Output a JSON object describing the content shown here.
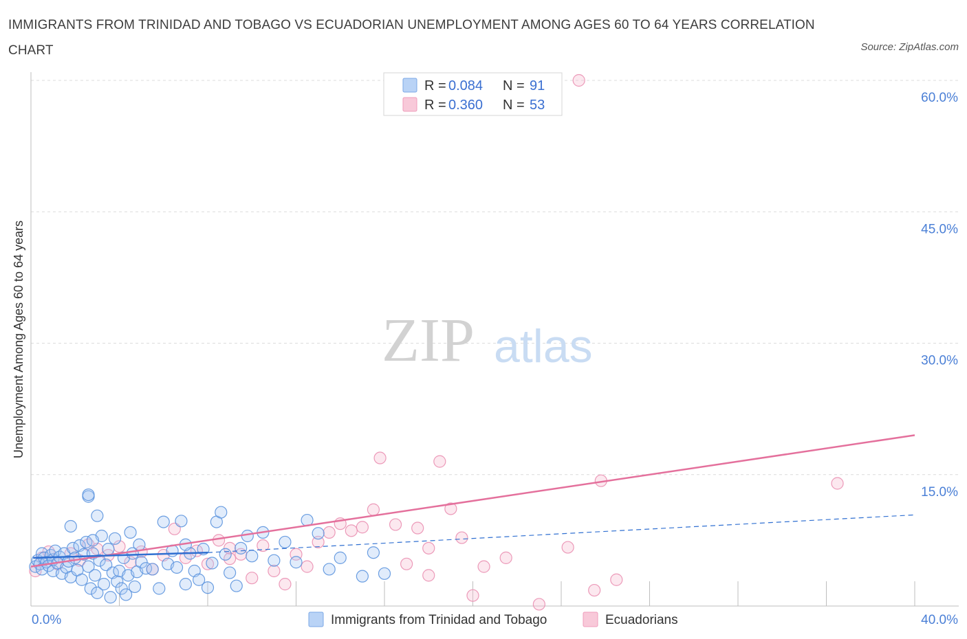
{
  "title": "IMMIGRANTS FROM TRINIDAD AND TOBAGO VS ECUADORIAN UNEMPLOYMENT AMONG AGES 60 TO 64 YEARS CORRELATION CHART",
  "source": "Source: ZipAtlas.com",
  "watermark": {
    "zip": "ZIP",
    "atlas": "atlas"
  },
  "legend": {
    "r_label": "R =",
    "n_label": "N =",
    "rows": [
      {
        "r": "0.084",
        "n": "91",
        "color": "#a9c8f3"
      },
      {
        "r": "0.360",
        "n": "53",
        "color": "#f6bdd0"
      }
    ]
  },
  "bottom_legend": [
    {
      "label": "Immigrants from Trinidad and Tobago",
      "color": "#a9c8f3"
    },
    {
      "label": "Ecuadorians",
      "color": "#f6bdd0"
    }
  ],
  "chart_data": {
    "type": "scatter",
    "ylabel": "Unemployment Among Ages 60 to 64 years",
    "xlim": [
      0,
      40
    ],
    "ylim": [
      0,
      60
    ],
    "x_tick_labels": [
      "0.0%",
      "40.0%"
    ],
    "y_ticks": [
      15,
      30,
      45,
      60
    ],
    "y_tick_labels": [
      "15.0%",
      "30.0%",
      "45.0%",
      "60.0%"
    ],
    "grid": true,
    "colors": {
      "blue": "#5b93de",
      "pink": "#ea8fb1",
      "blue_line": "#2f6fd1",
      "pink_line": "#e4709c"
    },
    "series": [
      {
        "name": "Immigrants from Trinidad and Tobago",
        "trend": {
          "solid": [
            [
              0.1,
              5.5
            ],
            [
              8.0,
              6.1
            ]
          ],
          "dashed": [
            [
              8.0,
              6.1
            ],
            [
              40.0,
              10.4
            ]
          ]
        },
        "points": [
          [
            0.2,
            4.5
          ],
          [
            0.3,
            5.2
          ],
          [
            0.4,
            4.8
          ],
          [
            0.5,
            6.0
          ],
          [
            0.5,
            4.2
          ],
          [
            0.6,
            5.5
          ],
          [
            0.7,
            5.0
          ],
          [
            0.8,
            4.6
          ],
          [
            0.9,
            5.8
          ],
          [
            1.0,
            4.0
          ],
          [
            1.0,
            5.3
          ],
          [
            1.1,
            6.3
          ],
          [
            1.2,
            4.9
          ],
          [
            1.3,
            5.6
          ],
          [
            1.4,
            3.7
          ],
          [
            1.5,
            6.0
          ],
          [
            1.6,
            4.4
          ],
          [
            1.7,
            5.1
          ],
          [
            1.8,
            3.3
          ],
          [
            1.9,
            6.6
          ],
          [
            2.0,
            5.5
          ],
          [
            2.1,
            4.1
          ],
          [
            2.2,
            6.9
          ],
          [
            2.3,
            3.0
          ],
          [
            2.4,
            5.9
          ],
          [
            2.5,
            7.3
          ],
          [
            2.6,
            4.5
          ],
          [
            2.7,
            2.0
          ],
          [
            2.8,
            6.0
          ],
          [
            2.9,
            3.5
          ],
          [
            3.0,
            1.5
          ],
          [
            3.1,
            5.2
          ],
          [
            3.2,
            8.0
          ],
          [
            3.3,
            2.5
          ],
          [
            3.4,
            4.7
          ],
          [
            3.5,
            6.5
          ],
          [
            3.6,
            1.0
          ],
          [
            3.7,
            3.8
          ],
          [
            3.8,
            7.7
          ],
          [
            3.9,
            2.8
          ],
          [
            4.0,
            4.0
          ],
          [
            4.1,
            2.0
          ],
          [
            4.2,
            5.5
          ],
          [
            4.3,
            1.3
          ],
          [
            4.4,
            3.5
          ],
          [
            4.5,
            8.4
          ],
          [
            4.6,
            6.0
          ],
          [
            4.7,
            2.2
          ],
          [
            4.8,
            3.9
          ],
          [
            2.6,
            12.5
          ],
          [
            2.6,
            12.7
          ],
          [
            3.0,
            10.3
          ],
          [
            1.8,
            9.1
          ],
          [
            2.8,
            7.5
          ],
          [
            4.9,
            7.0
          ],
          [
            5.0,
            5.0
          ],
          [
            5.2,
            4.3
          ],
          [
            5.5,
            4.2
          ],
          [
            5.8,
            2.0
          ],
          [
            6.0,
            9.6
          ],
          [
            6.2,
            4.8
          ],
          [
            6.4,
            6.3
          ],
          [
            6.6,
            4.4
          ],
          [
            6.8,
            9.7
          ],
          [
            7.0,
            2.5
          ],
          [
            7.2,
            6.0
          ],
          [
            7.4,
            4.0
          ],
          [
            7.6,
            3.0
          ],
          [
            7.8,
            6.5
          ],
          [
            8.0,
            2.1
          ],
          [
            8.2,
            4.9
          ],
          [
            8.4,
            9.6
          ],
          [
            8.6,
            10.7
          ],
          [
            8.8,
            5.9
          ],
          [
            9.0,
            3.8
          ],
          [
            9.3,
            2.3
          ],
          [
            9.5,
            6.6
          ],
          [
            9.8,
            8.0
          ],
          [
            10.0,
            5.7
          ],
          [
            10.5,
            8.4
          ],
          [
            11.0,
            5.2
          ],
          [
            11.5,
            7.3
          ],
          [
            12.0,
            5.0
          ],
          [
            12.5,
            9.8
          ],
          [
            13.0,
            8.3
          ],
          [
            13.5,
            4.2
          ],
          [
            14.0,
            5.5
          ],
          [
            15.0,
            3.4
          ],
          [
            15.5,
            6.1
          ],
          [
            16.0,
            3.7
          ],
          [
            7.0,
            7.0
          ]
        ]
      },
      {
        "name": "Ecuadorians",
        "trend": {
          "solid": [
            [
              0.0,
              4.5
            ],
            [
              40.0,
              19.5
            ]
          ]
        },
        "points": [
          [
            0.2,
            4.0
          ],
          [
            0.5,
            5.5
          ],
          [
            0.8,
            6.2
          ],
          [
            1.2,
            4.8
          ],
          [
            1.8,
            6.0
          ],
          [
            2.2,
            5.2
          ],
          [
            2.6,
            7.0
          ],
          [
            3.0,
            6.5
          ],
          [
            3.5,
            5.8
          ],
          [
            4.0,
            6.8
          ],
          [
            4.5,
            5.0
          ],
          [
            5.0,
            6.2
          ],
          [
            5.5,
            4.2
          ],
          [
            6.0,
            5.8
          ],
          [
            6.5,
            8.8
          ],
          [
            7.0,
            5.5
          ],
          [
            7.5,
            6.3
          ],
          [
            8.0,
            4.8
          ],
          [
            8.5,
            7.5
          ],
          [
            9.0,
            6.6
          ],
          [
            9.5,
            5.9
          ],
          [
            10.0,
            3.2
          ],
          [
            10.5,
            6.9
          ],
          [
            11.0,
            4.0
          ],
          [
            11.5,
            2.5
          ],
          [
            12.0,
            5.9
          ],
          [
            12.5,
            4.5
          ],
          [
            13.0,
            7.3
          ],
          [
            13.5,
            8.4
          ],
          [
            14.0,
            9.4
          ],
          [
            14.5,
            8.6
          ],
          [
            15.0,
            9.0
          ],
          [
            15.5,
            11.0
          ],
          [
            15.8,
            16.9
          ],
          [
            16.5,
            9.3
          ],
          [
            17.0,
            4.8
          ],
          [
            17.5,
            8.9
          ],
          [
            18.0,
            6.6
          ],
          [
            18.5,
            16.5
          ],
          [
            19.0,
            11.1
          ],
          [
            19.5,
            7.8
          ],
          [
            20.0,
            1.2
          ],
          [
            20.5,
            4.5
          ],
          [
            21.5,
            5.5
          ],
          [
            23.0,
            0.2
          ],
          [
            24.3,
            6.7
          ],
          [
            25.5,
            1.8
          ],
          [
            25.8,
            14.3
          ],
          [
            26.5,
            3.0
          ],
          [
            24.8,
            60.0
          ],
          [
            36.5,
            14.0
          ],
          [
            18.0,
            3.5
          ],
          [
            9.0,
            5.4
          ]
        ]
      }
    ]
  }
}
